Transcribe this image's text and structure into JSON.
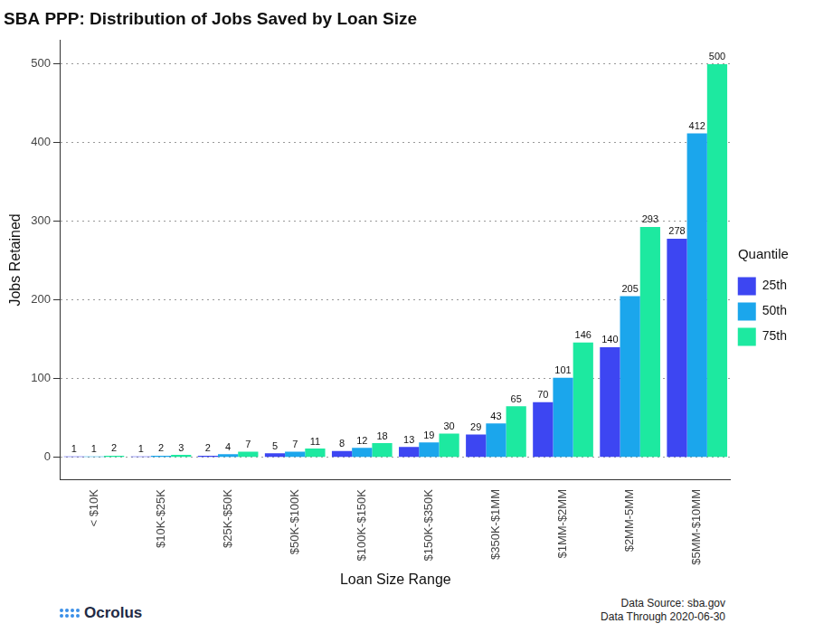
{
  "chart_data": {
    "type": "bar",
    "title": "SBA PPP: Distribution of Jobs Saved by Loan Size",
    "x_label": "Loan Size Range",
    "y_label": "Jobs Retained",
    "legend_title": "Quantile",
    "categories": [
      "< $10K",
      "$10K-$25K",
      "$25K-$50K",
      "$50K-$100K",
      "$100K-$150K",
      "$150K-$350K",
      "$350K-$1MM",
      "$1MM-$2MM",
      "$2MM-5MM",
      "$5MM-$10MM"
    ],
    "series": [
      {
        "name": "25th",
        "color": "#3d46f2",
        "values": [
          1,
          1,
          2,
          5,
          8,
          13,
          29,
          70,
          140,
          278
        ]
      },
      {
        "name": "50th",
        "color": "#1ba6ec",
        "values": [
          1,
          2,
          4,
          7,
          12,
          19,
          43,
          101,
          205,
          412
        ]
      },
      {
        "name": "75th",
        "color": "#1de9a0",
        "values": [
          2,
          3,
          7,
          11,
          18,
          30,
          65,
          146,
          293,
          500
        ]
      }
    ],
    "ylim": [
      -28,
      530
    ],
    "yticks": [
      0,
      100,
      200,
      300,
      400,
      500
    ],
    "grid": true,
    "legend": "right",
    "data_labels": true,
    "source": "Data Source: sba.gov",
    "note": "Data Through 2020-06-30",
    "logo": "Ocrolus"
  }
}
